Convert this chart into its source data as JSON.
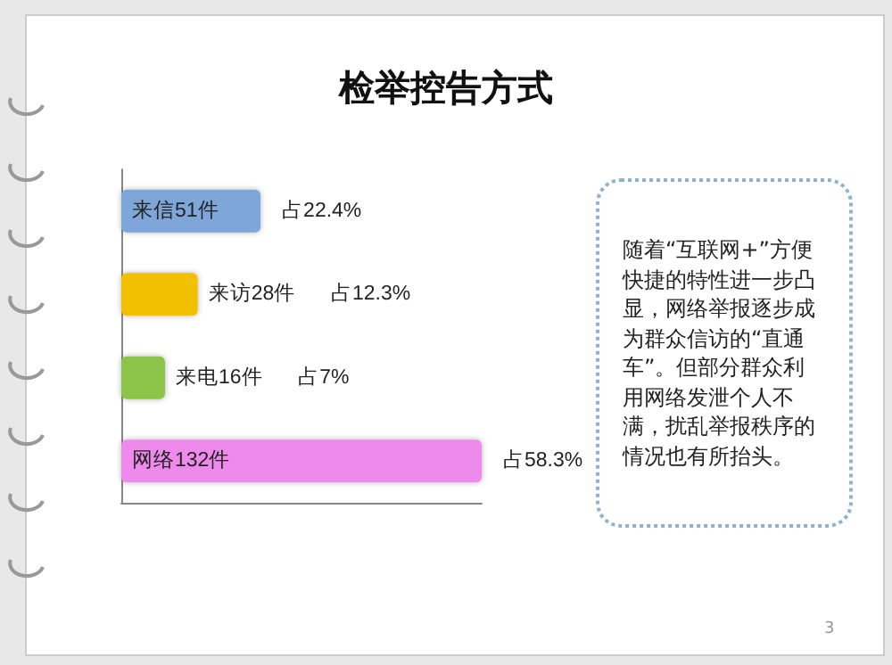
{
  "chart_data": {
    "type": "bar",
    "orientation": "horizontal",
    "title": "检举控告方式",
    "categories": [
      null,
      null,
      null,
      null
    ],
    "values": [
      51,
      28,
      16,
      132
    ],
    "colors": [
      "#7fa6d8",
      "#f2c000",
      "#8cc34a",
      "#ee8aeb"
    ],
    "value_labels": [
      "来信51件",
      "来访28件",
      "来电16件",
      "网络132件"
    ],
    "tick_labels": false,
    "annotations": [
      "占22.4%",
      "占12.3%",
      "占7%",
      "占58.3%",
      "随着“互联网+”方便快捷的特性进一步凸显，网络举报逐步成为群众信访的“直通车”。但部分群众利用网络发泄个人不满，扰乱举报秩序的情况也有所抬头。",
      "3"
    ]
  }
}
